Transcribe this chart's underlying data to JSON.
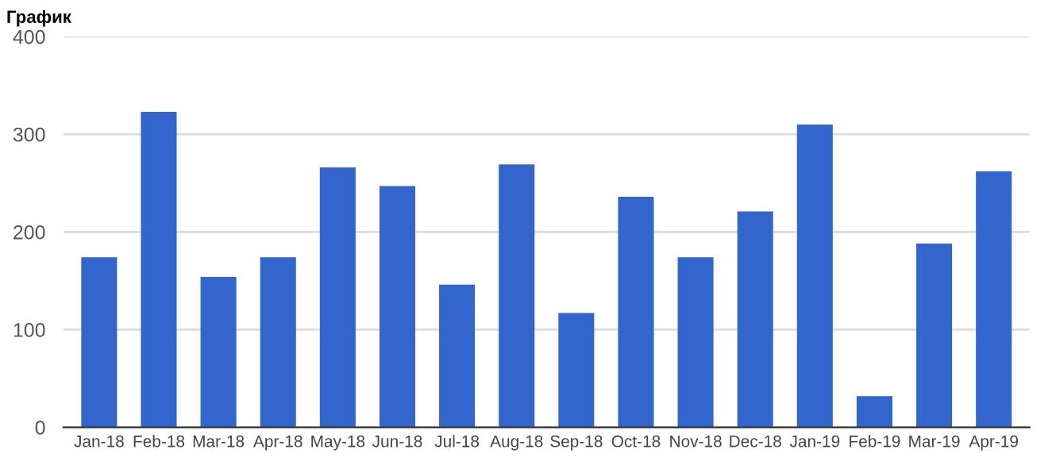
{
  "chart_data": {
    "type": "bar",
    "title": "График",
    "categories": [
      "Jan-18",
      "Feb-18",
      "Mar-18",
      "Apr-18",
      "May-18",
      "Jun-18",
      "Jul-18",
      "Aug-18",
      "Sep-18",
      "Oct-18",
      "Nov-18",
      "Dec-18",
      "Jan-19",
      "Feb-19",
      "Mar-19",
      "Apr-19"
    ],
    "series": [
      {
        "color": "#3366cc",
        "values": [
          174,
          323,
          154,
          174,
          266,
          247,
          146,
          269,
          117,
          236,
          174,
          221,
          310,
          32,
          188,
          262
        ]
      }
    ],
    "ylim": [
      0,
      400
    ],
    "yticks": [
      0,
      100,
      200,
      300,
      400
    ],
    "grid": "y",
    "legend": false
  }
}
